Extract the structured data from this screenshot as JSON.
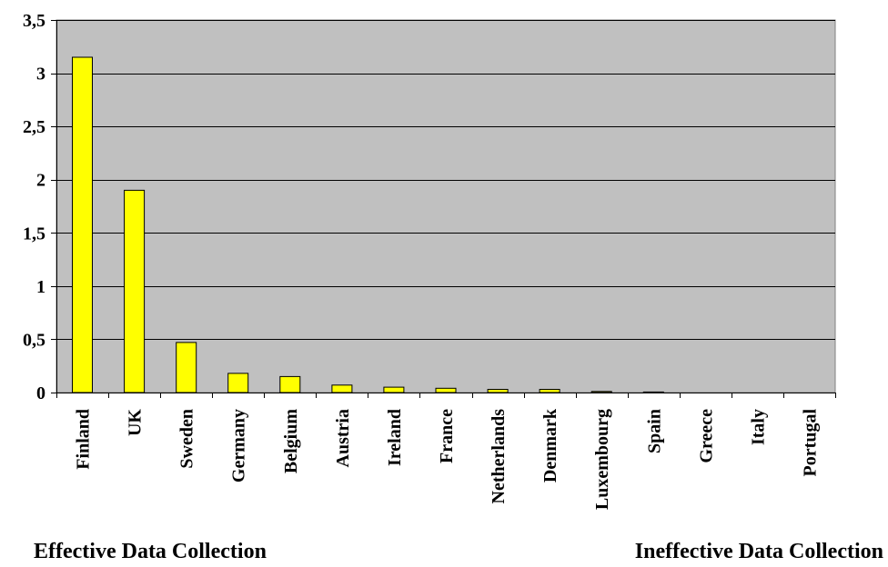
{
  "chart_data": {
    "type": "bar",
    "categories": [
      "Finland",
      "UK",
      "Sweden",
      "Germany",
      "Belgium",
      "Austria",
      "Ireland",
      "France",
      "Netherlands",
      "Denmark",
      "Luxembourg",
      "Spain",
      "Greece",
      "Italy",
      "Portugal"
    ],
    "values": [
      3.15,
      1.9,
      0.47,
      0.18,
      0.15,
      0.07,
      0.05,
      0.04,
      0.03,
      0.03,
      0.01,
      0.005,
      0,
      0,
      0
    ],
    "ylim": [
      0,
      3.5
    ],
    "yticks": [
      "0",
      "0,5",
      "1",
      "1,5",
      "2",
      "2,5",
      "3",
      "3,5"
    ],
    "grid": true,
    "title": "",
    "xlabel": "",
    "ylabel": "",
    "colors": {
      "plot_bg": "#c0c0c0",
      "bar": "#ffff00",
      "bar_edge": "#000000",
      "grid": "#000000"
    }
  },
  "footer": {
    "left_label": "Effective Data Collection",
    "right_label": "Ineffective Data Collection"
  }
}
